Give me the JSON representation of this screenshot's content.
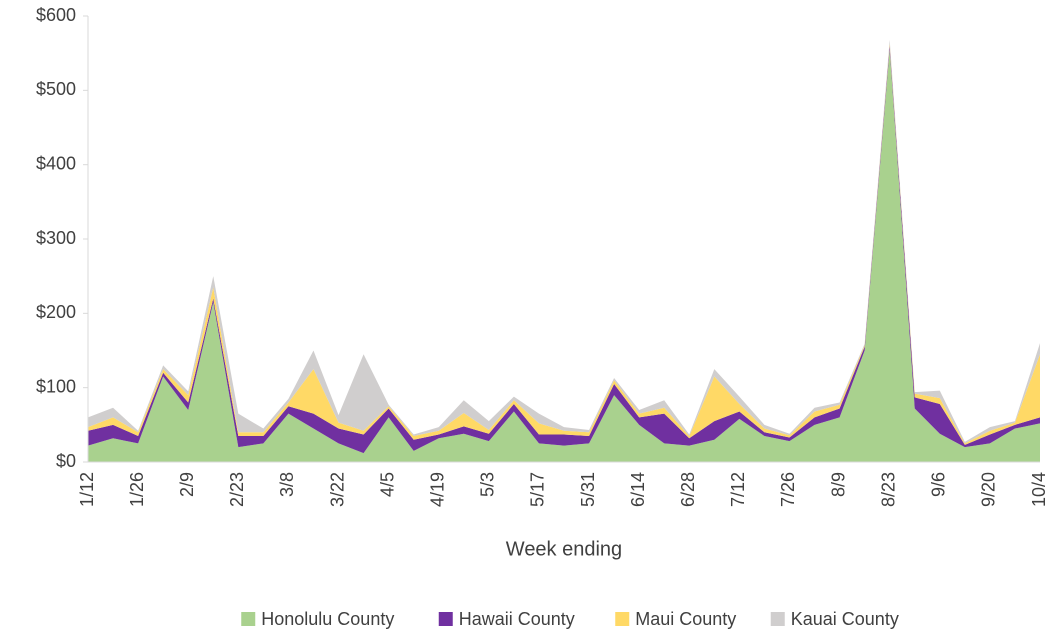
{
  "chart_data": {
    "type": "stacked_area",
    "x_label": "Week ending",
    "categories": [
      "1/12",
      null,
      "1/26",
      null,
      "2/9",
      null,
      "2/23",
      null,
      "3/8",
      null,
      "3/22",
      null,
      "4/5",
      null,
      "4/19",
      null,
      "5/3",
      null,
      "5/17",
      null,
      "5/31",
      null,
      "6/14",
      null,
      "6/28",
      null,
      "7/12",
      null,
      "7/26",
      null,
      "8/9",
      null,
      "8/23",
      null,
      "9/6",
      null,
      "9/20",
      null,
      "10/4"
    ],
    "series": [
      {
        "name": "Honolulu County",
        "color": "#a9d18e",
        "values": [
          22,
          32,
          25,
          115,
          70,
          215,
          20,
          25,
          65,
          45,
          25,
          12,
          60,
          15,
          32,
          38,
          28,
          68,
          25,
          22,
          25,
          90,
          50,
          25,
          22,
          30,
          58,
          35,
          28,
          50,
          60,
          150,
          555,
          72,
          38,
          20,
          25,
          45,
          52
        ]
      },
      {
        "name": "Hawaii County",
        "color": "#7030a0",
        "values": [
          20,
          18,
          10,
          5,
          10,
          5,
          15,
          10,
          10,
          20,
          20,
          25,
          12,
          15,
          5,
          10,
          10,
          10,
          12,
          15,
          10,
          15,
          10,
          40,
          10,
          25,
          10,
          5,
          5,
          10,
          12,
          5,
          5,
          15,
          40,
          3,
          12,
          5,
          8
        ]
      },
      {
        "name": "Maui County",
        "color": "#ffd966",
        "values": [
          5,
          10,
          5,
          5,
          10,
          15,
          5,
          5,
          5,
          60,
          8,
          5,
          3,
          5,
          5,
          18,
          5,
          5,
          15,
          5,
          5,
          5,
          5,
          8,
          3,
          60,
          10,
          5,
          3,
          8,
          5,
          2,
          3,
          5,
          8,
          2,
          5,
          3,
          85
        ]
      },
      {
        "name": "Kauai County",
        "color": "#d0cece",
        "values": [
          13,
          13,
          2,
          5,
          5,
          15,
          25,
          5,
          5,
          25,
          10,
          103,
          2,
          2,
          5,
          17,
          12,
          5,
          13,
          5,
          3,
          3,
          5,
          10,
          2,
          10,
          10,
          5,
          2,
          5,
          3,
          2,
          5,
          2,
          10,
          2,
          5,
          2,
          15
        ]
      }
    ],
    "ylim": [
      0,
      600
    ],
    "yticks": [
      {
        "value": 0,
        "label": "$0"
      },
      {
        "value": 100,
        "label": "$100"
      },
      {
        "value": 200,
        "label": "$200"
      },
      {
        "value": 300,
        "label": "$300"
      },
      {
        "value": 400,
        "label": "$400"
      },
      {
        "value": 500,
        "label": "$500"
      },
      {
        "value": 600,
        "label": "$600"
      }
    ],
    "legend": "bottom"
  }
}
